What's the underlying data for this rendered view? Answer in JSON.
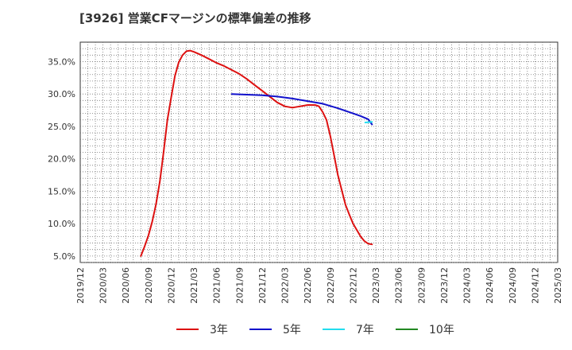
{
  "title": "[3926]  営業CFマージンの標準偏差の推移",
  "chart_data": {
    "type": "line",
    "title": "[3926]  営業CFマージンの標準偏差の推移",
    "xlabel": "",
    "ylabel": "",
    "x_ticks": [
      "2019/12",
      "2020/03",
      "2020/06",
      "2020/09",
      "2020/12",
      "2021/03",
      "2021/06",
      "2021/09",
      "2021/12",
      "2022/03",
      "2022/06",
      "2022/09",
      "2022/12",
      "2023/03",
      "2023/06",
      "2023/09",
      "2023/12",
      "2024/03",
      "2024/06",
      "2024/09",
      "2024/12",
      "2025/03"
    ],
    "y_ticks": [
      "5.0%",
      "10.0%",
      "15.0%",
      "20.0%",
      "25.0%",
      "30.0%",
      "35.0%"
    ],
    "ylim": [
      4.0,
      38.0
    ],
    "grid": true,
    "legend_position": "bottom",
    "series": [
      {
        "name": "3年",
        "color": "#dd1111",
        "points": [
          [
            8.0,
            5.0
          ],
          [
            8.5,
            6.5
          ],
          [
            9.0,
            8.2
          ],
          [
            9.5,
            10.3
          ],
          [
            10.0,
            13.0
          ],
          [
            10.5,
            16.5
          ],
          [
            11.0,
            21.0
          ],
          [
            11.5,
            26.0
          ],
          [
            12.0,
            29.5
          ],
          [
            12.5,
            32.8
          ],
          [
            13.0,
            34.9
          ],
          [
            13.5,
            36.0
          ],
          [
            14.0,
            36.6
          ],
          [
            14.5,
            36.7
          ],
          [
            15.0,
            36.5
          ],
          [
            16.0,
            36.0
          ],
          [
            17.0,
            35.4
          ],
          [
            18.0,
            34.8
          ],
          [
            19.0,
            34.3
          ],
          [
            20.0,
            33.7
          ],
          [
            21.0,
            33.1
          ],
          [
            22.0,
            32.3
          ],
          [
            23.0,
            31.4
          ],
          [
            24.0,
            30.5
          ],
          [
            25.0,
            29.6
          ],
          [
            26.0,
            28.7
          ],
          [
            27.0,
            28.1
          ],
          [
            28.0,
            27.9
          ],
          [
            29.0,
            28.1
          ],
          [
            30.0,
            28.3
          ],
          [
            31.0,
            28.3
          ],
          [
            31.5,
            28.1
          ],
          [
            32.0,
            27.2
          ],
          [
            32.5,
            26.0
          ],
          [
            33.0,
            23.5
          ],
          [
            33.5,
            20.5
          ],
          [
            34.0,
            17.5
          ],
          [
            34.5,
            15.2
          ],
          [
            35.0,
            12.9
          ],
          [
            35.5,
            11.4
          ],
          [
            36.0,
            10.0
          ],
          [
            36.5,
            9.0
          ],
          [
            37.0,
            8.0
          ],
          [
            37.5,
            7.3
          ],
          [
            38.0,
            6.9
          ],
          [
            38.5,
            6.8
          ]
        ]
      },
      {
        "name": "5年",
        "color": "#1111cc",
        "points": [
          [
            20.0,
            30.0
          ],
          [
            22.0,
            29.9
          ],
          [
            24.0,
            29.8
          ],
          [
            26.0,
            29.6
          ],
          [
            28.0,
            29.3
          ],
          [
            30.0,
            28.9
          ],
          [
            32.0,
            28.5
          ],
          [
            34.0,
            27.8
          ],
          [
            36.0,
            27.0
          ],
          [
            37.0,
            26.6
          ],
          [
            38.0,
            26.1
          ],
          [
            38.5,
            25.3
          ]
        ]
      },
      {
        "name": "7年",
        "color": "#22ddee",
        "points": [
          [
            37.6,
            25.6
          ],
          [
            38.5,
            25.7
          ]
        ]
      },
      {
        "name": "10年",
        "color": "#228822",
        "points": []
      }
    ]
  }
}
